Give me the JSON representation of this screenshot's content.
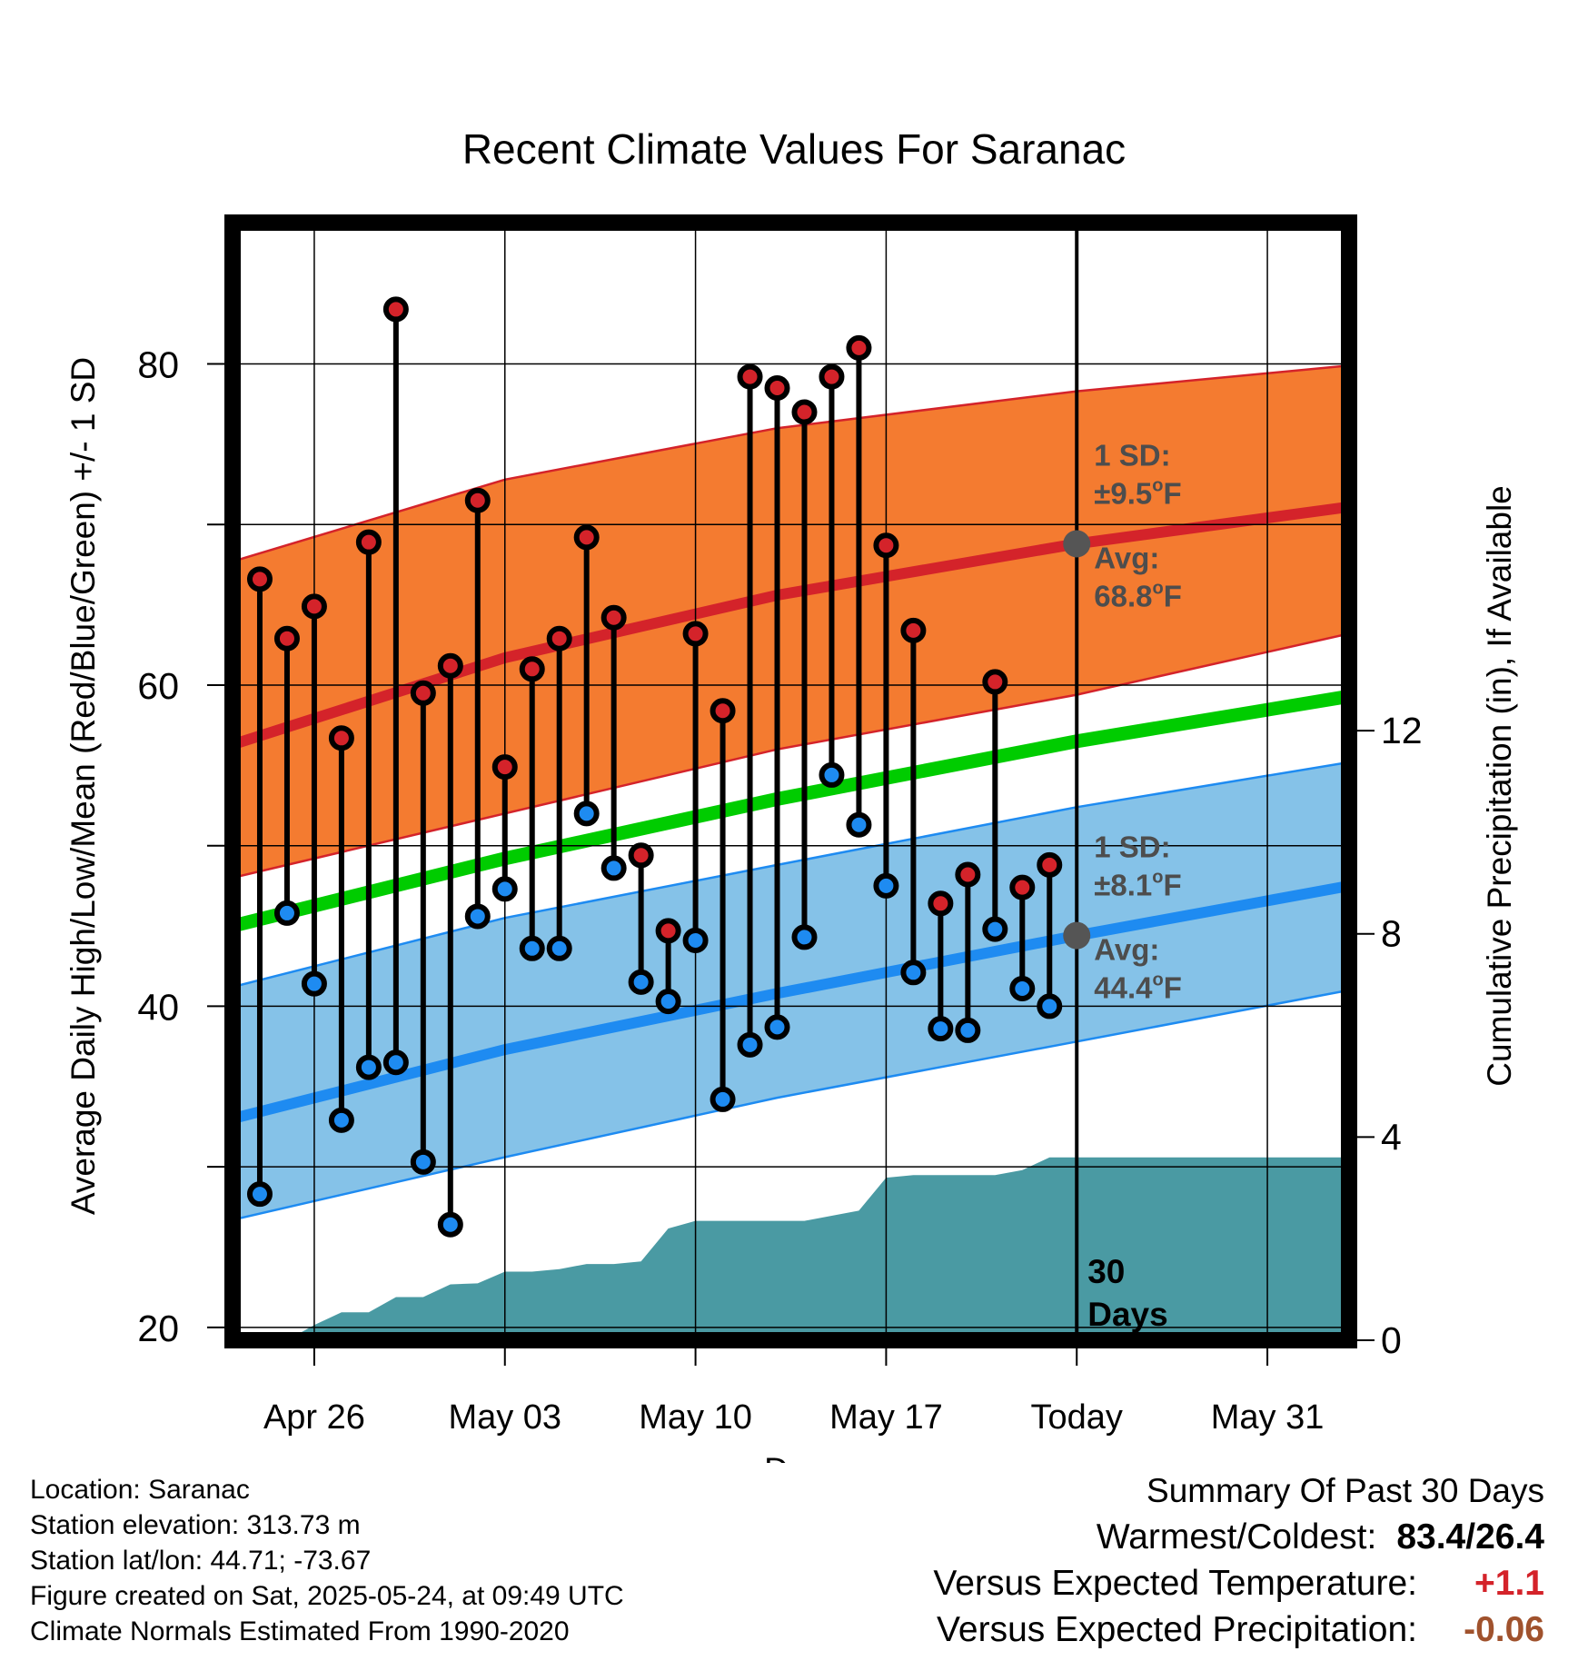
{
  "chart_data": {
    "type": "line",
    "title": "Recent Climate Values For Saranac",
    "xlabel": "Day",
    "ylabel": "Average Daily High/Low/Mean (Red/Blue/Green) +/- 1 SD",
    "y2label": "Cumulative Precipitation (in), If Available",
    "x_tick_labels": [
      "Apr 26",
      "May 03",
      "May 10",
      "May 17",
      "Today",
      "May 31"
    ],
    "y_ticks": [
      20,
      40,
      60,
      80
    ],
    "y2_ticks": [
      0,
      4,
      8,
      12
    ],
    "ylim": [
      19.2,
      88.8
    ],
    "y2lim": [
      0,
      22
    ],
    "xlim": [
      "2025-04-23",
      "2025-06-03"
    ],
    "grid": true,
    "today": "2025-05-24",
    "today_label": "30\nDays",
    "highs": {
      "dates": [
        "2025-04-24",
        "2025-04-25",
        "2025-04-26",
        "2025-04-27",
        "2025-04-28",
        "2025-04-29",
        "2025-04-30",
        "2025-05-01",
        "2025-05-02",
        "2025-05-03",
        "2025-05-04",
        "2025-05-05",
        "2025-05-06",
        "2025-05-07",
        "2025-05-08",
        "2025-05-09",
        "2025-05-10",
        "2025-05-11",
        "2025-05-12",
        "2025-05-13",
        "2025-05-14",
        "2025-05-15",
        "2025-05-16",
        "2025-05-17",
        "2025-05-18",
        "2025-05-19",
        "2025-05-20",
        "2025-05-21",
        "2025-05-22",
        "2025-05-23"
      ],
      "values": [
        66.6,
        62.9,
        64.9,
        56.7,
        68.9,
        83.4,
        59.5,
        61.2,
        71.5,
        54.9,
        61.0,
        62.9,
        69.2,
        64.2,
        49.4,
        44.7,
        63.2,
        58.4,
        79.2,
        78.5,
        77.0,
        79.2,
        81.0,
        68.7,
        63.4,
        46.4,
        48.2,
        60.2,
        47.4,
        48.8
      ]
    },
    "lows": {
      "dates": [
        "2025-04-24",
        "2025-04-25",
        "2025-04-26",
        "2025-04-27",
        "2025-04-28",
        "2025-04-29",
        "2025-04-30",
        "2025-05-01",
        "2025-05-02",
        "2025-05-03",
        "2025-05-04",
        "2025-05-05",
        "2025-05-06",
        "2025-05-07",
        "2025-05-08",
        "2025-05-09",
        "2025-05-10",
        "2025-05-11",
        "2025-05-12",
        "2025-05-13",
        "2025-05-14",
        "2025-05-15",
        "2025-05-16",
        "2025-05-17",
        "2025-05-18",
        "2025-05-19",
        "2025-05-20",
        "2025-05-21",
        "2025-05-22",
        "2025-05-23"
      ],
      "values": [
        28.3,
        45.8,
        41.4,
        32.9,
        36.2,
        36.5,
        30.3,
        26.4,
        45.6,
        47.3,
        43.6,
        43.6,
        52.0,
        48.6,
        41.5,
        40.3,
        44.1,
        34.2,
        37.6,
        38.7,
        44.3,
        54.4,
        51.3,
        47.5,
        42.1,
        38.6,
        38.5,
        44.8,
        41.1,
        40.0
      ]
    },
    "normal_high": {
      "dates": [
        "2025-04-23",
        "2025-05-03",
        "2025-05-13",
        "2025-05-24",
        "2025-06-03"
      ],
      "avg": [
        56.3,
        61.7,
        65.6,
        68.8,
        71.1
      ],
      "upper": [
        67.7,
        72.8,
        76.0,
        78.3,
        79.9
      ],
      "lower": [
        48.0,
        52.0,
        56.0,
        59.4,
        63.2
      ]
    },
    "normal_mean": {
      "dates": [
        "2025-04-23",
        "2025-05-03",
        "2025-05-13",
        "2025-05-24",
        "2025-06-03"
      ],
      "values": [
        45.0,
        49.2,
        52.9,
        56.5,
        59.3
      ]
    },
    "normal_low": {
      "dates": [
        "2025-04-23",
        "2025-05-03",
        "2025-05-13",
        "2025-05-24",
        "2025-06-03"
      ],
      "avg": [
        33.0,
        37.3,
        40.8,
        44.4,
        47.5
      ],
      "upper": [
        41.2,
        45.5,
        48.8,
        52.4,
        55.2
      ],
      "lower": [
        26.7,
        30.6,
        34.3,
        37.8,
        41.0
      ]
    },
    "high_annotation": {
      "sd_label": "1 SD:",
      "sd_value": "±9.5",
      "avg_label": "Avg:",
      "avg_value": "68.8",
      "unit": "oF"
    },
    "low_annotation": {
      "sd_label": "1 SD:",
      "sd_value": "±8.1",
      "avg_label": "Avg:",
      "avg_value": "44.4",
      "unit": "oF"
    },
    "precip": {
      "dates": [
        "2025-04-25",
        "2025-04-26",
        "2025-04-27",
        "2025-04-28",
        "2025-04-29",
        "2025-04-30",
        "2025-05-01",
        "2025-05-02",
        "2025-05-03",
        "2025-05-04",
        "2025-05-05",
        "2025-05-06",
        "2025-05-07",
        "2025-05-08",
        "2025-05-09",
        "2025-05-10",
        "2025-05-11",
        "2025-05-12",
        "2025-05-13",
        "2025-05-14",
        "2025-05-15",
        "2025-05-16",
        "2025-05-17",
        "2025-05-18",
        "2025-05-19",
        "2025-05-20",
        "2025-05-21",
        "2025-05-22",
        "2025-05-23",
        "2025-05-24"
      ],
      "values": [
        0.0,
        0.3,
        0.55,
        0.55,
        0.85,
        0.85,
        1.1,
        1.12,
        1.35,
        1.35,
        1.4,
        1.5,
        1.5,
        1.55,
        2.2,
        2.35,
        2.35,
        2.35,
        2.35,
        2.35,
        2.45,
        2.55,
        3.2,
        3.25,
        3.25,
        3.25,
        3.25,
        3.35,
        3.6,
        3.6
      ]
    },
    "colors": {
      "high_band": "#f47b30",
      "high_line": "#d4232a",
      "low_band": "#85c2e8",
      "low_line": "#1e8bf1",
      "mean_line": "#00cc00",
      "precip": "#4a9aa3",
      "high_marker": "#d4232a",
      "low_marker": "#1e8bf1",
      "annotation_text": "#4d4d4d"
    }
  },
  "info": {
    "location": "Location: Saranac",
    "elevation": "Station elevation: 313.73 m",
    "latlon": "Station lat/lon: 44.71; -73.67",
    "created": "Figure created on Sat, 2025-05-24, at 09:49 UTC",
    "normals": "Climate Normals Estimated From 1990-2020"
  },
  "summary": {
    "title": "Summary Of Past 30 Days",
    "warmest_label": "Warmest/Coldest:",
    "warmest_value": "83.4/26.4",
    "temp_label": "Versus Expected Temperature:",
    "temp_value": "+1.1",
    "temp_color": "#d4232a",
    "precip_label": "Versus Expected Precipitation:",
    "precip_value": "-0.06",
    "precip_color": "#a0522d"
  }
}
